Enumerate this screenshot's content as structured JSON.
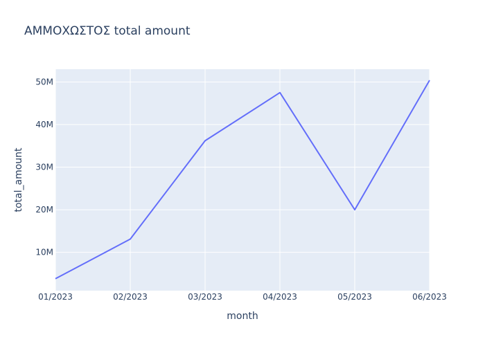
{
  "chart_data": {
    "type": "line",
    "title": "ΑΜΜΟΧΩΣΤΟΣ total amount",
    "xlabel": "month",
    "ylabel": "total_amount",
    "categories": [
      "01/2023",
      "02/2023",
      "03/2023",
      "04/2023",
      "05/2023",
      "06/2023"
    ],
    "series": [
      {
        "values": [
          3800000,
          13100000,
          36200000,
          47500000,
          20000000,
          50400000
        ],
        "color": "#636efa"
      }
    ],
    "ylim": [
      1000000,
      53000000
    ],
    "y_ticks": [
      10000000,
      20000000,
      30000000,
      40000000,
      50000000
    ],
    "y_tick_labels": [
      "10M",
      "20M",
      "30M",
      "40M",
      "50M"
    ],
    "grid": true,
    "plot_background": "#e5ecf6",
    "grid_color": "#ffffff",
    "text_color": "#2a3f5f"
  }
}
